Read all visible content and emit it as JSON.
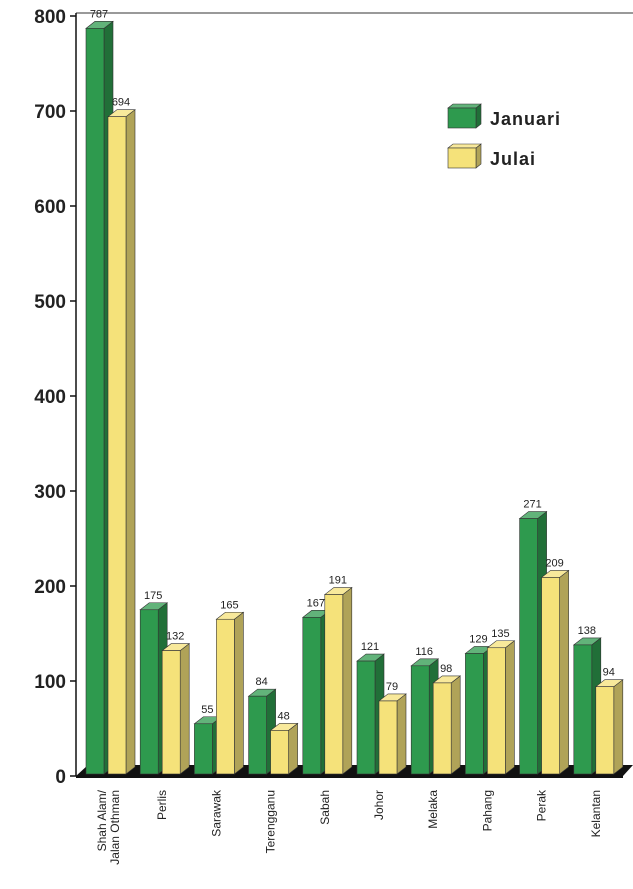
{
  "chart_data": {
    "type": "bar",
    "categories": [
      "Shah Alam/\nJalan Othman",
      "Perlis",
      "Sarawak",
      "Terengganu",
      "Sabah",
      "Johor",
      "Melaka",
      "Pahang",
      "Perak",
      "Kelantan"
    ],
    "series": [
      {
        "name": "Januari",
        "values": [
          787,
          175,
          55,
          84,
          167,
          121,
          116,
          129,
          271,
          138
        ],
        "color": "#2e9a4e"
      },
      {
        "name": "Julai",
        "values": [
          694,
          132,
          165,
          48,
          191,
          79,
          98,
          135,
          209,
          94
        ],
        "color": "#f5e27a"
      }
    ],
    "ylim": [
      0,
      800
    ],
    "yticks": [
      0,
      100,
      200,
      300,
      400,
      500,
      600,
      700,
      800
    ],
    "xlabel": "",
    "ylabel": "",
    "legend_position": "top-right",
    "grid": false,
    "style": "3d"
  }
}
